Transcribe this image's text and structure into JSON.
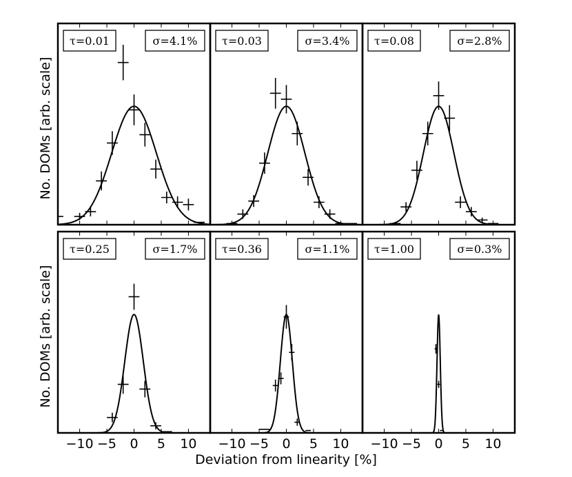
{
  "figure": {
    "xlabel": "Deviation from linearity [%]",
    "ylabel": "No. DOMs [arb. scale]"
  },
  "chart_data": [
    {
      "type": "line",
      "tau_label": "τ=0.01",
      "sigma_label": "σ=4.1%",
      "sigma": 4.1,
      "peak": 1.0,
      "points": [
        {
          "x": -14.0,
          "y": 0.07,
          "xerr": 1.0,
          "yerr": 0.0
        },
        {
          "x": -10.0,
          "y": 0.07,
          "xerr": 1.0,
          "yerr": 0.03
        },
        {
          "x": -8.0,
          "y": 0.11,
          "xerr": 1.0,
          "yerr": 0.04
        },
        {
          "x": -6.0,
          "y": 0.37,
          "xerr": 1.0,
          "yerr": 0.08
        },
        {
          "x": -4.0,
          "y": 0.69,
          "xerr": 1.0,
          "yerr": 0.1
        },
        {
          "x": -2.0,
          "y": 1.37,
          "xerr": 1.0,
          "yerr": 0.15
        },
        {
          "x": 0.0,
          "y": 0.97,
          "xerr": 1.0,
          "yerr": 0.13
        },
        {
          "x": 2.0,
          "y": 0.76,
          "xerr": 1.0,
          "yerr": 0.1
        },
        {
          "x": 4.0,
          "y": 0.47,
          "xerr": 1.0,
          "yerr": 0.08
        },
        {
          "x": 6.0,
          "y": 0.23,
          "xerr": 1.0,
          "yerr": 0.05
        },
        {
          "x": 8.0,
          "y": 0.19,
          "xerr": 1.0,
          "yerr": 0.05
        },
        {
          "x": 10.0,
          "y": 0.17,
          "xerr": 1.0,
          "yerr": 0.05
        },
        {
          "x": 12.0,
          "y": 0.02,
          "xerr": 1.0,
          "yerr": 0.0
        }
      ]
    },
    {
      "type": "line",
      "tau_label": "τ=0.03",
      "sigma_label": "σ=3.4%",
      "sigma": 3.4,
      "peak": 1.0,
      "points": [
        {
          "x": -10.0,
          "y": 0.01,
          "xerr": 1.0,
          "yerr": 0.0
        },
        {
          "x": -8.0,
          "y": 0.09,
          "xerr": 1.0,
          "yerr": 0.04
        },
        {
          "x": -6.0,
          "y": 0.2,
          "xerr": 1.0,
          "yerr": 0.05
        },
        {
          "x": -4.0,
          "y": 0.52,
          "xerr": 1.0,
          "yerr": 0.09
        },
        {
          "x": -2.0,
          "y": 1.11,
          "xerr": 1.0,
          "yerr": 0.13
        },
        {
          "x": 0.0,
          "y": 1.06,
          "xerr": 1.0,
          "yerr": 0.12
        },
        {
          "x": 2.0,
          "y": 0.77,
          "xerr": 1.0,
          "yerr": 0.1
        },
        {
          "x": 4.0,
          "y": 0.4,
          "xerr": 1.0,
          "yerr": 0.07
        },
        {
          "x": 6.0,
          "y": 0.19,
          "xerr": 1.0,
          "yerr": 0.05
        },
        {
          "x": 8.0,
          "y": 0.09,
          "xerr": 1.0,
          "yerr": 0.04
        },
        {
          "x": 10.0,
          "y": 0.01,
          "xerr": 1.0,
          "yerr": 0.0
        },
        {
          "x": 12.0,
          "y": 0.01,
          "xerr": 1.0,
          "yerr": 0.0
        }
      ]
    },
    {
      "type": "line",
      "tau_label": "τ=0.08",
      "sigma_label": "σ=2.8%",
      "sigma": 2.8,
      "peak": 1.0,
      "points": [
        {
          "x": -8.0,
          "y": 0.01,
          "xerr": 1.0,
          "yerr": 0.0
        },
        {
          "x": -6.0,
          "y": 0.15,
          "xerr": 1.0,
          "yerr": 0.04
        },
        {
          "x": -4.0,
          "y": 0.46,
          "xerr": 1.0,
          "yerr": 0.08
        },
        {
          "x": -2.0,
          "y": 0.77,
          "xerr": 1.0,
          "yerr": 0.1
        },
        {
          "x": 0.0,
          "y": 1.09,
          "xerr": 1.0,
          "yerr": 0.12
        },
        {
          "x": 2.0,
          "y": 0.9,
          "xerr": 1.0,
          "yerr": 0.11
        },
        {
          "x": 4.0,
          "y": 0.19,
          "xerr": 1.0,
          "yerr": 0.05
        },
        {
          "x": 6.0,
          "y": 0.11,
          "xerr": 1.0,
          "yerr": 0.04
        },
        {
          "x": 8.0,
          "y": 0.04,
          "xerr": 1.0,
          "yerr": 0.02
        },
        {
          "x": 10.0,
          "y": 0.01,
          "xerr": 1.0,
          "yerr": 0.0
        }
      ]
    },
    {
      "type": "line",
      "tau_label": "τ=0.25",
      "sigma_label": "σ=1.7%",
      "sigma": 1.7,
      "peak": 1.0,
      "points": [
        {
          "x": -4.0,
          "y": 0.13,
          "xerr": 1.0,
          "yerr": 0.04
        },
        {
          "x": -2.0,
          "y": 0.41,
          "xerr": 1.0,
          "yerr": 0.08
        },
        {
          "x": 0.0,
          "y": 1.15,
          "xerr": 1.0,
          "yerr": 0.11
        },
        {
          "x": 2.0,
          "y": 0.37,
          "xerr": 1.0,
          "yerr": 0.07
        },
        {
          "x": 4.0,
          "y": 0.06,
          "xerr": 1.0,
          "yerr": 0.03
        },
        {
          "x": 6.0,
          "y": 0.01,
          "xerr": 1.0,
          "yerr": 0.0
        }
      ]
    },
    {
      "type": "line",
      "tau_label": "τ=0.36",
      "sigma_label": "σ=1.1%",
      "sigma": 1.1,
      "peak": 1.0,
      "points": [
        {
          "x": -4.0,
          "y": 0.03,
          "xerr": 1.0,
          "yerr": 0.0
        },
        {
          "x": -2.0,
          "y": 0.4,
          "xerr": 0.5,
          "yerr": 0.05
        },
        {
          "x": -1.0,
          "y": 0.46,
          "xerr": 0.5,
          "yerr": 0.05
        },
        {
          "x": 0.0,
          "y": 0.98,
          "xerr": 0.5,
          "yerr": 0.1
        },
        {
          "x": 1.0,
          "y": 0.68,
          "xerr": 0.5,
          "yerr": 0.07
        },
        {
          "x": 2.0,
          "y": 0.09,
          "xerr": 0.5,
          "yerr": 0.03
        },
        {
          "x": 4.0,
          "y": 0.02,
          "xerr": 0.5,
          "yerr": 0.0
        }
      ]
    },
    {
      "type": "line",
      "tau_label": "τ=1.00",
      "sigma_label": "σ=0.3%",
      "sigma": 0.3,
      "peak": 1.0,
      "points": [
        {
          "x": -0.5,
          "y": 0.71,
          "xerr": 0.25,
          "yerr": 0.04
        },
        {
          "x": 0.0,
          "y": 0.41,
          "xerr": 0.25,
          "yerr": 0.03
        },
        {
          "x": 0.5,
          "y": 0.02,
          "xerr": 0.25,
          "yerr": 0.0
        }
      ]
    }
  ],
  "axes": {
    "xlim": [
      -14,
      14
    ],
    "ylim": [
      0,
      1.7
    ],
    "xticks": [
      -10,
      -5,
      0,
      5,
      10
    ],
    "xtick_labels": [
      "−10",
      "−5",
      "0",
      "5",
      "10"
    ]
  }
}
